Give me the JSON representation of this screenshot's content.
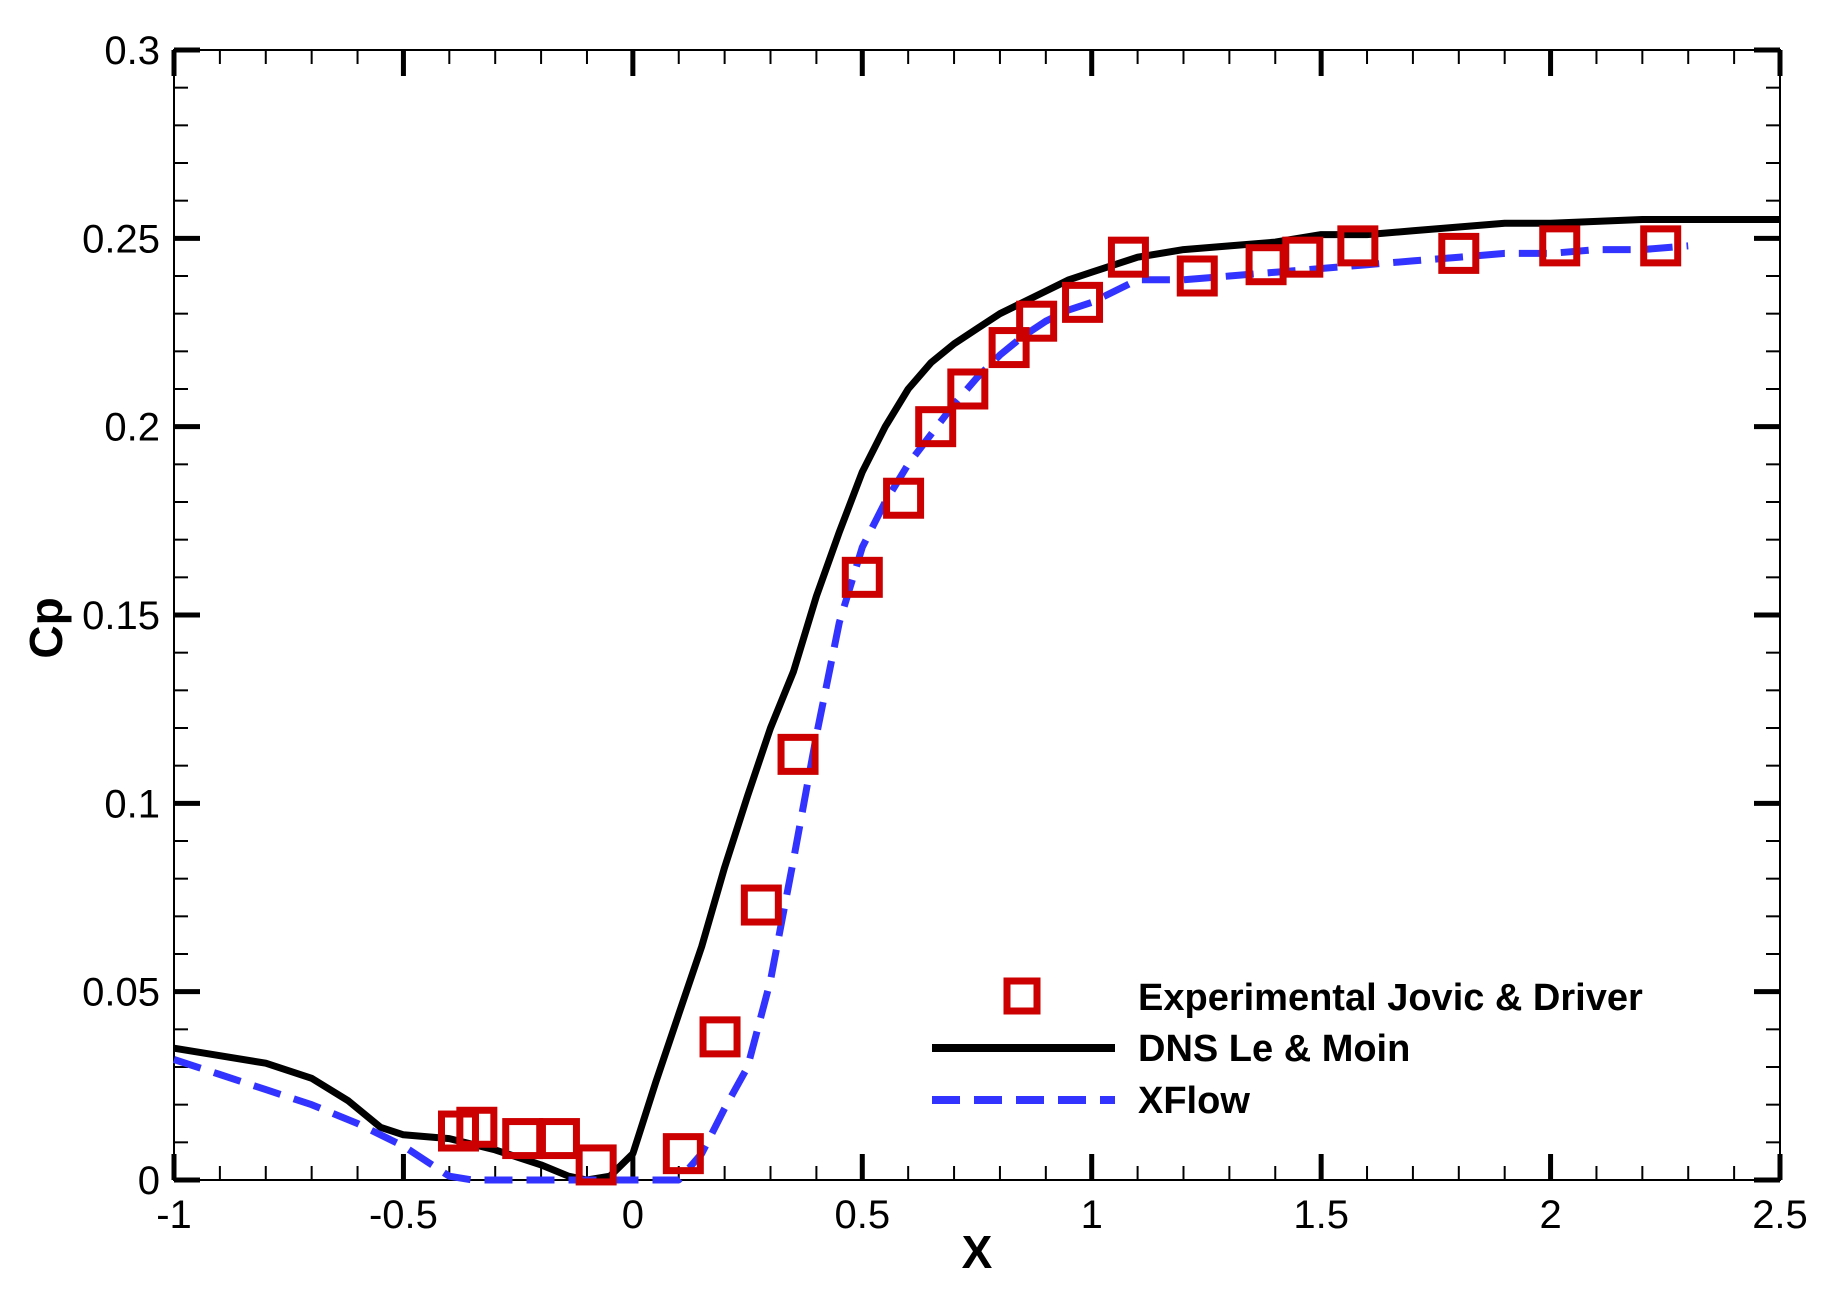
{
  "chart_data": {
    "type": "line",
    "title": "",
    "xlabel": "X",
    "ylabel": "Cp",
    "xlim": [
      -1,
      2.5
    ],
    "ylim": [
      0,
      0.3
    ],
    "x_major_ticks": [
      -1,
      -0.5,
      0,
      0.5,
      1,
      1.5,
      2,
      2.5
    ],
    "x_tick_labels": [
      "-1",
      "-0.5",
      "0",
      "0.5",
      "1",
      "1.5",
      "2",
      "2.5"
    ],
    "x_minor_step": 0.1,
    "y_major_ticks": [
      0,
      0.05,
      0.1,
      0.15,
      0.2,
      0.25,
      0.3
    ],
    "y_tick_labels": [
      "0",
      "0.05",
      "0.1",
      "0.15",
      "0.2",
      "0.25",
      "0.3"
    ],
    "y_minor_step": 0.01,
    "grid": false,
    "legend_position": "bottom-right",
    "series": [
      {
        "name": "Experimental Jovic & Driver",
        "style": "markers",
        "marker": "open-square",
        "color": "#cc0000",
        "x": [
          -0.38,
          -0.34,
          -0.24,
          -0.16,
          -0.08,
          0.11,
          0.19,
          0.28,
          0.36,
          0.5,
          0.59,
          0.66,
          0.73,
          0.82,
          0.88,
          0.98,
          1.08,
          1.23,
          1.38,
          1.46,
          1.58,
          1.8,
          2.02,
          2.24
        ],
        "y": [
          0.013,
          0.014,
          0.011,
          0.011,
          0.004,
          0.007,
          0.038,
          0.073,
          0.113,
          0.16,
          0.181,
          0.2,
          0.21,
          0.221,
          0.228,
          0.233,
          0.245,
          0.24,
          0.243,
          0.245,
          0.248,
          0.246,
          0.248,
          0.248
        ]
      },
      {
        "name": "DNS Le & Moin",
        "style": "solid",
        "color": "#000000",
        "x": [
          -1.0,
          -0.9,
          -0.8,
          -0.7,
          -0.62,
          -0.55,
          -0.5,
          -0.4,
          -0.3,
          -0.2,
          -0.14,
          -0.1,
          -0.05,
          0.0,
          0.05,
          0.1,
          0.15,
          0.2,
          0.25,
          0.3,
          0.35,
          0.4,
          0.45,
          0.5,
          0.55,
          0.6,
          0.65,
          0.7,
          0.75,
          0.8,
          0.85,
          0.9,
          0.95,
          1.0,
          1.1,
          1.2,
          1.3,
          1.4,
          1.5,
          1.6,
          1.7,
          1.8,
          1.9,
          2.0,
          2.2,
          2.5
        ],
        "y": [
          0.035,
          0.033,
          0.031,
          0.027,
          0.021,
          0.014,
          0.012,
          0.011,
          0.008,
          0.004,
          0.001,
          0.0,
          0.001,
          0.007,
          0.026,
          0.044,
          0.062,
          0.083,
          0.102,
          0.12,
          0.135,
          0.155,
          0.172,
          0.188,
          0.2,
          0.21,
          0.217,
          0.222,
          0.226,
          0.23,
          0.233,
          0.236,
          0.239,
          0.241,
          0.245,
          0.247,
          0.248,
          0.249,
          0.251,
          0.251,
          0.252,
          0.253,
          0.254,
          0.254,
          0.255,
          0.255
        ]
      },
      {
        "name": "XFlow",
        "style": "dashed",
        "color": "#3333ff",
        "x": [
          -1.0,
          -0.9,
          -0.8,
          -0.7,
          -0.6,
          -0.5,
          -0.45,
          -0.4,
          -0.35,
          -0.3,
          -0.2,
          -0.1,
          0.0,
          0.1,
          0.15,
          0.2,
          0.25,
          0.3,
          0.35,
          0.4,
          0.45,
          0.5,
          0.55,
          0.6,
          0.65,
          0.7,
          0.75,
          0.8,
          0.85,
          0.9,
          0.95,
          1.0,
          1.05,
          1.1,
          1.2,
          1.3,
          1.4,
          1.5,
          1.6,
          1.7,
          1.8,
          1.9,
          2.0,
          2.1,
          2.2,
          2.3
        ],
        "y": [
          0.032,
          0.028,
          0.024,
          0.02,
          0.015,
          0.009,
          0.005,
          0.001,
          0.0,
          0.0,
          0.0,
          0.0,
          0.0,
          0.0,
          0.007,
          0.019,
          0.03,
          0.053,
          0.085,
          0.118,
          0.148,
          0.168,
          0.18,
          0.19,
          0.198,
          0.206,
          0.213,
          0.219,
          0.224,
          0.228,
          0.231,
          0.233,
          0.236,
          0.239,
          0.239,
          0.24,
          0.241,
          0.242,
          0.243,
          0.244,
          0.245,
          0.246,
          0.246,
          0.247,
          0.247,
          0.248
        ]
      }
    ]
  }
}
